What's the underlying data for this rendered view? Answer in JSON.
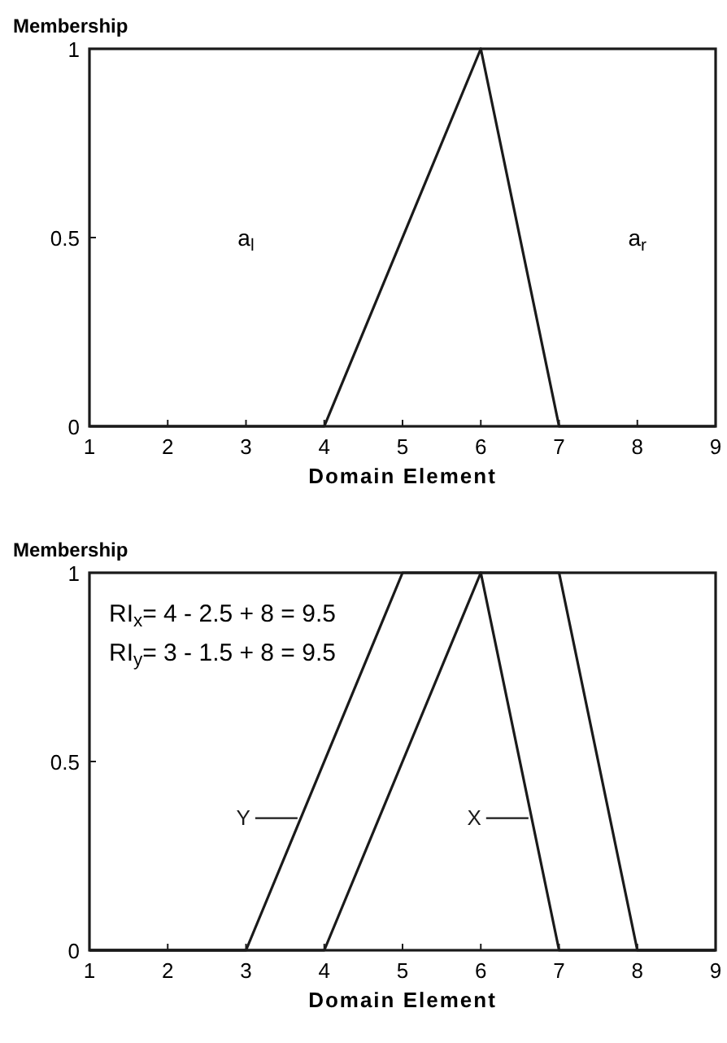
{
  "chart_data": [
    {
      "type": "line",
      "xlabel": "Domain Element",
      "ylabel": "Membership",
      "xlim": [
        1,
        9
      ],
      "ylim": [
        0,
        1
      ],
      "xticks": [
        1,
        2,
        3,
        4,
        5,
        6,
        7,
        8,
        9
      ],
      "yticks": [
        0,
        0.5,
        1
      ],
      "grid": false,
      "marker": "none",
      "line_style": "solid",
      "series": [
        {
          "color": "#1a1a1a",
          "x": [
            1,
            4,
            6,
            7,
            9
          ],
          "values": [
            0,
            0,
            1,
            0,
            0
          ]
        }
      ],
      "annotations": [
        "a$_{l}$",
        "a$_{r}$"
      ]
    },
    {
      "type": "line",
      "xlabel": "Domain Element",
      "ylabel": "Membership",
      "xlim": [
        1,
        9
      ],
      "ylim": [
        0,
        1
      ],
      "xticks": [
        1,
        2,
        3,
        4,
        5,
        6,
        7,
        8,
        9
      ],
      "yticks": [
        0,
        0.5,
        1
      ],
      "grid": false,
      "legend": "bottom left",
      "marker": "none",
      "line_style": "solid",
      "series": [
        {
          "name": "X",
          "color": "#1a1a1a",
          "x": [
            1,
            4,
            6,
            7,
            9
          ],
          "values": [
            0,
            0,
            1,
            0,
            0
          ]
        },
        {
          "name": "Y",
          "color": "#1a1a1a",
          "x": [
            1,
            3,
            5,
            7,
            8,
            9
          ],
          "values": [
            0,
            0,
            1,
            1,
            0,
            0
          ]
        }
      ],
      "annotations": [
        "RI$_{x}$= 4 - 2.5 + 8 = 9.5",
        "RI$_{y}$= 3 - 1.5 + 8 = 9.5"
      ]
    }
  ]
}
